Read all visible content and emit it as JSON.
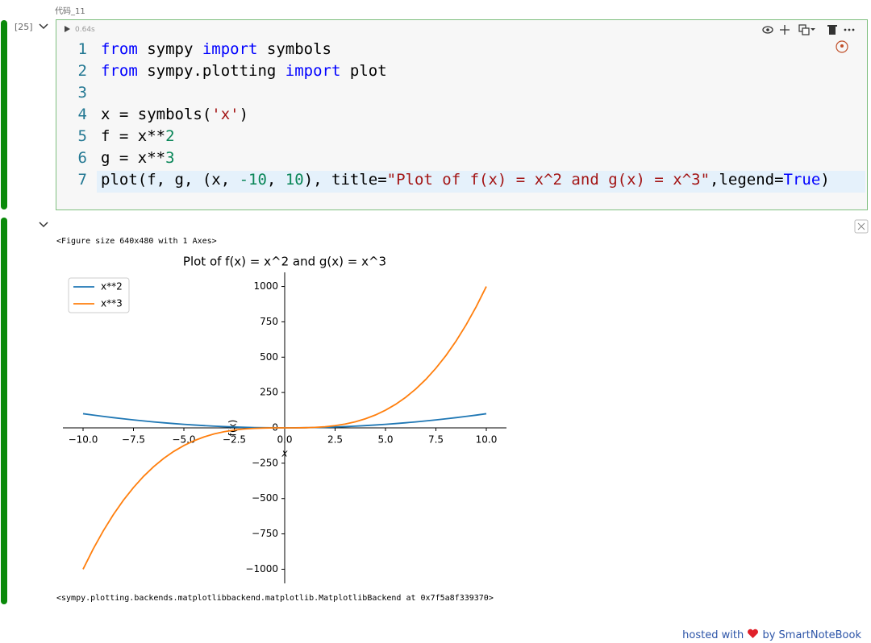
{
  "cell_label": "代码_11",
  "execution_count": "[25]",
  "run_time": "0.64s",
  "line_numbers": [
    1,
    2,
    3,
    4,
    5,
    6,
    7
  ],
  "code": [
    {
      "tokens": [
        {
          "t": "from",
          "c": "#0000ff"
        },
        {
          "t": " sympy ",
          "c": "#000000"
        },
        {
          "t": "import",
          "c": "#0000ff"
        },
        {
          "t": " symbols",
          "c": "#000000"
        }
      ]
    },
    {
      "tokens": [
        {
          "t": "from",
          "c": "#0000ff"
        },
        {
          "t": " sympy.plotting ",
          "c": "#000000"
        },
        {
          "t": "import",
          "c": "#0000ff"
        },
        {
          "t": " plot",
          "c": "#000000"
        }
      ]
    },
    {
      "tokens": []
    },
    {
      "tokens": [
        {
          "t": "x = symbols(",
          "c": "#000000"
        },
        {
          "t": "'x'",
          "c": "#a31515"
        },
        {
          "t": ")",
          "c": "#000000"
        }
      ]
    },
    {
      "tokens": [
        {
          "t": "f = x**",
          "c": "#000000"
        },
        {
          "t": "2",
          "c": "#098658"
        }
      ]
    },
    {
      "tokens": [
        {
          "t": "g = x**",
          "c": "#000000"
        },
        {
          "t": "3",
          "c": "#098658"
        }
      ]
    },
    {
      "tokens": [
        {
          "t": "plot(f, g, (x, ",
          "c": "#000000"
        },
        {
          "t": "-10",
          "c": "#098658"
        },
        {
          "t": ", ",
          "c": "#000000"
        },
        {
          "t": "10",
          "c": "#098658"
        },
        {
          "t": "), title=",
          "c": "#000000"
        },
        {
          "t": "\"Plot of f(x) = x^2 and g(x) = x^3\"",
          "c": "#a31515"
        },
        {
          "t": ",legend=",
          "c": "#000000"
        },
        {
          "t": "True",
          "c": "#0000ff"
        },
        {
          "t": ")",
          "c": "#000000"
        }
      ]
    }
  ],
  "output_text": "<Figure size 640x480 with 1 Axes>",
  "chart_data": {
    "type": "line",
    "title": "Plot of f(x) = x^2 and g(x) = x^3",
    "x_label": "x",
    "y_label": "f(x)",
    "legend": "upper left",
    "x": [
      -10,
      -9.5,
      -9,
      -8.5,
      -8,
      -7.5,
      -7,
      -6.5,
      -6,
      -5.5,
      -5,
      -4.5,
      -4,
      -3.5,
      -3,
      -2.5,
      -2,
      -1.5,
      -1,
      -0.5,
      0,
      0.5,
      1,
      1.5,
      2,
      2.5,
      3,
      3.5,
      4,
      4.5,
      5,
      5.5,
      6,
      6.5,
      7,
      7.5,
      8,
      8.5,
      9,
      9.5,
      10
    ],
    "series": [
      {
        "name": "x**2",
        "color": "#1f77b4",
        "values": [
          100,
          90.25,
          81,
          72.25,
          64,
          56.25,
          49,
          42.25,
          36,
          30.25,
          25,
          20.25,
          16,
          12.25,
          9,
          6.25,
          4,
          2.25,
          1,
          0.25,
          0,
          0.25,
          1,
          2.25,
          4,
          6.25,
          9,
          12.25,
          16,
          20.25,
          25,
          30.25,
          36,
          42.25,
          49,
          56.25,
          64,
          72.25,
          81,
          90.25,
          100
        ]
      },
      {
        "name": "x**3",
        "color": "#ff7f0e",
        "values": [
          -1000,
          -857.375,
          -729,
          -614.125,
          -512,
          -421.875,
          -343,
          -274.625,
          -216,
          -166.375,
          -125,
          -91.125,
          -64,
          -42.875,
          -27,
          -15.625,
          -8,
          -3.375,
          -1,
          -0.125,
          0,
          0.125,
          1,
          3.375,
          8,
          15.625,
          27,
          42.875,
          64,
          91.125,
          125,
          166.375,
          216,
          274.625,
          343,
          421.875,
          512,
          614.125,
          729,
          857.375,
          1000
        ]
      }
    ],
    "xlim": [
      -11,
      11
    ],
    "ylim": [
      -1100,
      1100
    ],
    "xticks": [
      {
        "value": -10,
        "label": "−10.0"
      },
      {
        "value": -7.5,
        "label": "−7.5"
      },
      {
        "value": -5,
        "label": "−5.0"
      },
      {
        "value": -2.5,
        "label": "−2.5"
      },
      {
        "value": 0,
        "label": "0.0"
      },
      {
        "value": 2.5,
        "label": "2.5"
      },
      {
        "value": 5,
        "label": "5.0"
      },
      {
        "value": 7.5,
        "label": "7.5"
      },
      {
        "value": 10,
        "label": "10.0"
      }
    ],
    "yticks": [
      1000,
      750,
      500,
      250,
      0,
      {
        "value": -250,
        "label": "−250"
      },
      {
        "value": -500,
        "label": "−500"
      },
      {
        "value": -750,
        "label": "−750"
      },
      {
        "value": -1000,
        "label": "−1000"
      }
    ]
  },
  "result_text": "<sympy.plotting.backends.matplotlibbackend.matplotlib.MatplotlibBackend at 0x7f5a8f339370>",
  "footer": {
    "before": "hosted with",
    "after": "by SmartNoteBook"
  }
}
